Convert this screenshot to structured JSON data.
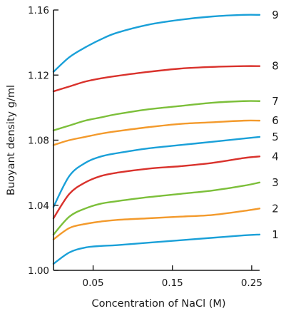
{
  "chart_data": {
    "type": "line",
    "title": "",
    "xlabel": "Concentration of NaCl (M)",
    "ylabel": "Buoyant density g/ml",
    "xlim": [
      0,
      0.26
    ],
    "ylim": [
      1.0,
      1.16
    ],
    "x_ticks": [
      0.05,
      0.15,
      0.25
    ],
    "x_tick_labels": [
      "0.05",
      "0.15",
      "0.25"
    ],
    "y_ticks": [
      1.0,
      1.04,
      1.08,
      1.12,
      1.16
    ],
    "y_tick_labels": [
      "1.00",
      "1.04",
      "1.08",
      "1.12",
      "1.16"
    ],
    "grid": false,
    "legend": "none",
    "series": [
      {
        "name": "1",
        "color": "#1aa0d8",
        "x": [
          0,
          0.02,
          0.04,
          0.06,
          0.08,
          0.12,
          0.16,
          0.2,
          0.24,
          0.26
        ],
        "y": [
          1.004,
          1.011,
          1.014,
          1.015,
          1.0155,
          1.017,
          1.0185,
          1.02,
          1.0215,
          1.022
        ]
      },
      {
        "name": "2",
        "color": "#f39a2c",
        "x": [
          0,
          0.02,
          0.04,
          0.06,
          0.08,
          0.12,
          0.16,
          0.2,
          0.24,
          0.26
        ],
        "y": [
          1.019,
          1.026,
          1.0285,
          1.03,
          1.031,
          1.032,
          1.033,
          1.034,
          1.0365,
          1.038
        ]
      },
      {
        "name": "3",
        "color": "#7cbf3a",
        "x": [
          0,
          0.02,
          0.04,
          0.06,
          0.08,
          0.12,
          0.16,
          0.2,
          0.24,
          0.26
        ],
        "y": [
          1.022,
          1.033,
          1.038,
          1.041,
          1.0425,
          1.045,
          1.047,
          1.049,
          1.052,
          1.054
        ]
      },
      {
        "name": "4",
        "color": "#d9322c",
        "x": [
          0,
          0.02,
          0.04,
          0.06,
          0.08,
          0.12,
          0.16,
          0.2,
          0.24,
          0.26
        ],
        "y": [
          1.032,
          1.047,
          1.054,
          1.058,
          1.06,
          1.0625,
          1.064,
          1.066,
          1.069,
          1.07
        ]
      },
      {
        "name": "5",
        "color": "#1aa0d8",
        "x": [
          0,
          0.02,
          0.04,
          0.06,
          0.08,
          0.12,
          0.16,
          0.2,
          0.24,
          0.26
        ],
        "y": [
          1.039,
          1.058,
          1.066,
          1.07,
          1.072,
          1.075,
          1.077,
          1.079,
          1.081,
          1.082
        ]
      },
      {
        "name": "6",
        "color": "#f39a2c",
        "x": [
          0,
          0.02,
          0.04,
          0.06,
          0.08,
          0.12,
          0.16,
          0.2,
          0.24,
          0.26
        ],
        "y": [
          1.077,
          1.08,
          1.082,
          1.084,
          1.0855,
          1.088,
          1.09,
          1.091,
          1.092,
          1.092
        ]
      },
      {
        "name": "7",
        "color": "#7cbf3a",
        "x": [
          0,
          0.02,
          0.04,
          0.06,
          0.08,
          0.12,
          0.16,
          0.2,
          0.24,
          0.26
        ],
        "y": [
          1.086,
          1.089,
          1.092,
          1.094,
          1.096,
          1.099,
          1.101,
          1.103,
          1.104,
          1.104
        ]
      },
      {
        "name": "8",
        "color": "#d9322c",
        "x": [
          0,
          0.02,
          0.04,
          0.06,
          0.08,
          0.12,
          0.16,
          0.2,
          0.24,
          0.26
        ],
        "y": [
          1.11,
          1.113,
          1.116,
          1.118,
          1.1195,
          1.122,
          1.124,
          1.125,
          1.1255,
          1.1255
        ]
      },
      {
        "name": "9",
        "color": "#1aa0d8",
        "x": [
          0,
          0.02,
          0.04,
          0.06,
          0.08,
          0.12,
          0.16,
          0.2,
          0.24,
          0.26
        ],
        "y": [
          1.122,
          1.131,
          1.137,
          1.142,
          1.146,
          1.151,
          1.154,
          1.156,
          1.157,
          1.157
        ]
      }
    ]
  }
}
